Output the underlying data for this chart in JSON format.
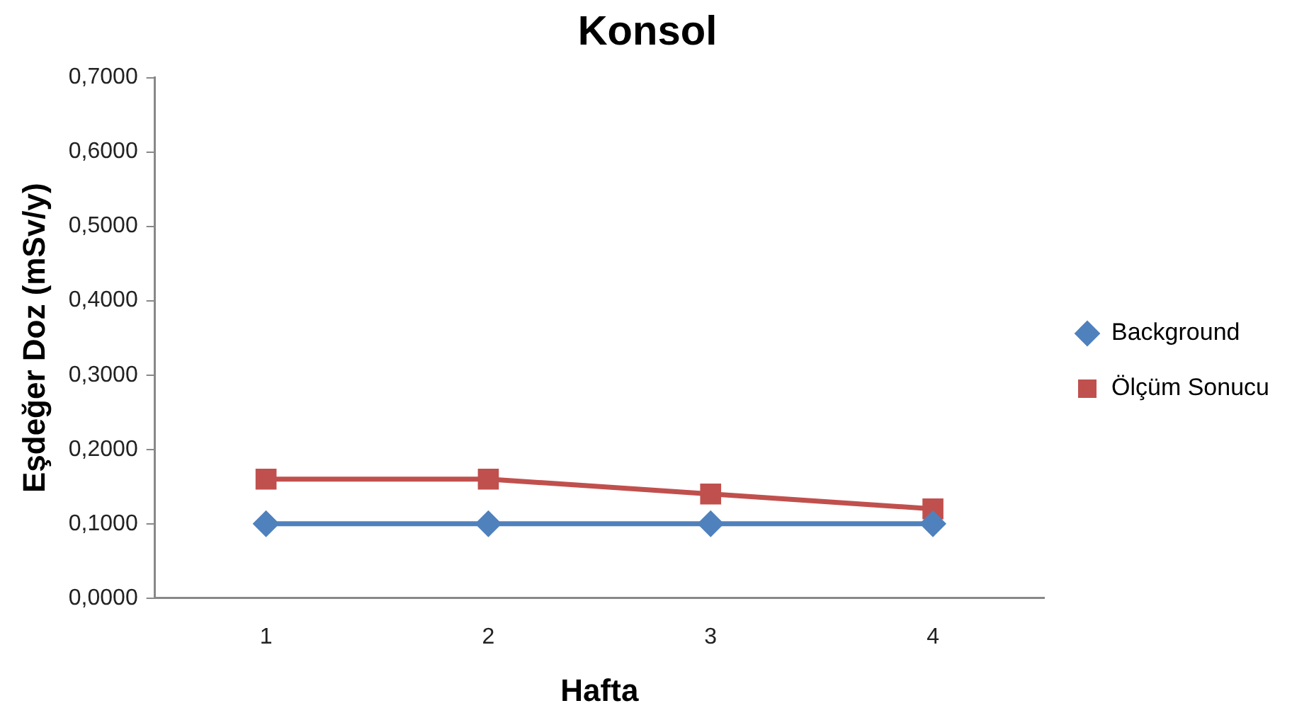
{
  "chart_data": {
    "type": "line",
    "title": "Konsol",
    "xlabel": "Hafta",
    "ylabel": "Eşdeğer Doz (mSv/y)",
    "categories": [
      "1",
      "2",
      "3",
      "4"
    ],
    "series": [
      {
        "name": "Background",
        "color": "#4f81bd",
        "marker": "diamond",
        "values": [
          0.1,
          0.1,
          0.1,
          0.1
        ]
      },
      {
        "name": "Ölçüm Sonucu",
        "color": "#c0504d",
        "marker": "square",
        "values": [
          0.16,
          0.16,
          0.14,
          0.12
        ]
      }
    ],
    "ylim": [
      0,
      0.7
    ],
    "yticks": [
      {
        "value": 0,
        "label": "0,0000"
      },
      {
        "value": 0.1,
        "label": "0,1000"
      },
      {
        "value": 0.2,
        "label": "0,2000"
      },
      {
        "value": 0.3,
        "label": "0,3000"
      },
      {
        "value": 0.4,
        "label": "0,4000"
      },
      {
        "value": 0.5,
        "label": "0,5000"
      },
      {
        "value": 0.6,
        "label": "0,6000"
      },
      {
        "value": 0.7,
        "label": "0,7000"
      }
    ],
    "grid": false,
    "legend": "right"
  }
}
